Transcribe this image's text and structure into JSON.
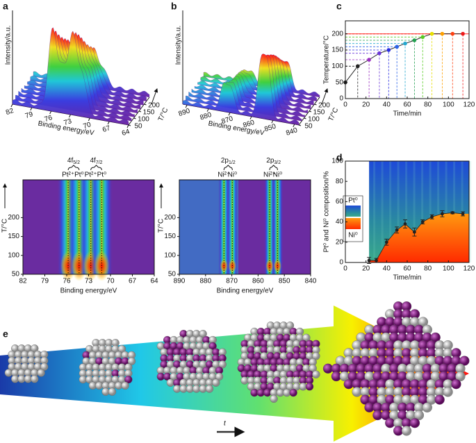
{
  "figure": {
    "panel_labels": [
      "a",
      "b",
      "c",
      "d",
      "e"
    ],
    "arrow_label": "t"
  },
  "chart_data": [
    {
      "type": "surface3d",
      "xlabel": "Binding energy/eV",
      "ylabel": "Intensity/a.u.",
      "zlabel": "T/°C",
      "xlim": [
        82,
        64
      ],
      "xticks": [
        82,
        79,
        76,
        73,
        70,
        67,
        64
      ],
      "zlim": [
        50,
        250
      ],
      "zticks": [
        50,
        100,
        150,
        200
      ]
    },
    {
      "type": "surface3d",
      "xlabel": "Binding energy/eV",
      "ylabel": "Intensity/a.u.",
      "zlabel": "T/°C",
      "xlim": [
        892,
        838
      ],
      "xticks": [
        890,
        880,
        870,
        860,
        850,
        840
      ],
      "zlim": [
        50,
        250
      ],
      "zticks": [
        50,
        100,
        150,
        200
      ]
    },
    {
      "type": "heatmap",
      "xlabel": "Binding energy/eV",
      "ylabel": "T/°C",
      "xlim": [
        82,
        64
      ],
      "xticks": [
        82,
        79,
        76,
        73,
        70,
        67,
        64
      ],
      "ylim": [
        50,
        300
      ],
      "yticks": [
        50,
        100,
        150,
        200
      ],
      "peaks": [
        {
          "label": "Pt²⁺",
          "x": 75.8
        },
        {
          "label": "Pt⁰",
          "x": 74.3
        },
        {
          "label": "Pt²⁺",
          "x": 72.7
        },
        {
          "label": "Pt⁰",
          "x": 71.2
        }
      ],
      "groups": [
        {
          "main": "4f",
          "sub": "5/2"
        },
        {
          "main": "4f",
          "sub": "7/2"
        }
      ]
    },
    {
      "type": "heatmap",
      "xlabel": "Binding energy/eV",
      "ylabel": "T/°C",
      "xlim": [
        890,
        840
      ],
      "xticks": [
        890,
        880,
        870,
        860,
        850,
        840
      ],
      "ylim": [
        50,
        300
      ],
      "yticks": [
        50,
        100,
        150,
        200
      ],
      "peaks": [
        {
          "label": "Ni²⁺",
          "x": 873
        },
        {
          "label": "Ni⁰",
          "x": 869.8
        },
        {
          "label": "Ni²⁺",
          "x": 855.6
        },
        {
          "label": "Ni⁰",
          "x": 852.6
        }
      ],
      "groups": [
        {
          "main": "2p",
          "sub": "1/2"
        },
        {
          "main": "2p",
          "sub": "3/2"
        }
      ]
    },
    {
      "type": "line",
      "xlabel": "Time/min",
      "ylabel": "Temperature/°C",
      "x": [
        0,
        12,
        23,
        33,
        42,
        50,
        58,
        67,
        75,
        84,
        94,
        104,
        114
      ],
      "values": [
        50,
        100,
        120,
        140,
        150,
        160,
        170,
        180,
        190,
        200,
        200,
        200,
        200
      ],
      "point_colors": [
        "#222222",
        "#222222",
        "#9a2fc0",
        "#6a36d8",
        "#2a2ee0",
        "#2a63e8",
        "#24a8d0",
        "#22a050",
        "#58cc22",
        "#e8e000",
        "#ffa000",
        "#ff4010",
        "#ee1a1a"
      ],
      "line_color": "#222222",
      "reference_line": {
        "value": 200,
        "color": "#ff4040"
      },
      "xlim": [
        0,
        120
      ],
      "xticks": [
        0,
        20,
        40,
        60,
        80,
        100,
        120
      ],
      "ylim": [
        0,
        240
      ],
      "yticks": [
        0,
        50,
        100,
        150,
        200
      ]
    },
    {
      "type": "area_scatter",
      "xlabel": "Time/min",
      "ylabel": "Pt⁰ and Ni⁰ composition/%",
      "x": [
        23,
        30,
        40,
        50,
        58,
        67,
        75,
        84,
        94,
        104,
        114
      ],
      "values": [
        2,
        2,
        20,
        32,
        38,
        30,
        40,
        45,
        48,
        49,
        48
      ],
      "errors": [
        3,
        2,
        3,
        3,
        4,
        4,
        2,
        2,
        3,
        1,
        2
      ],
      "legend": [
        "Pt⁰",
        "Ni⁰"
      ],
      "xlim": [
        0,
        120
      ],
      "xticks": [
        0,
        20,
        40,
        60,
        80,
        100,
        120
      ],
      "ylim": [
        0,
        100
      ],
      "yticks": [
        0,
        20,
        40,
        60,
        80,
        100
      ]
    }
  ]
}
